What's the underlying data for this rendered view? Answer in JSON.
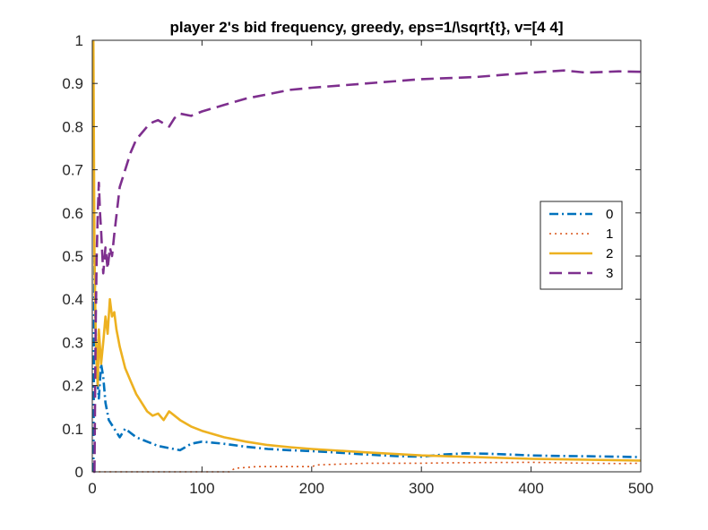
{
  "chart_data": {
    "type": "line",
    "title": "player 2's bid frequency, greedy, eps=1/\\sqrt{t}, v=[4 4]",
    "xlabel": "",
    "ylabel": "",
    "xlim": [
      0,
      500
    ],
    "ylim": [
      0,
      1
    ],
    "xticks": [
      0,
      100,
      200,
      300,
      400,
      500
    ],
    "yticks": [
      0,
      0.1,
      0.2,
      0.3,
      0.4,
      0.5,
      0.6,
      0.7,
      0.8,
      0.9,
      1
    ],
    "xtick_labels": [
      "0",
      "100",
      "200",
      "300",
      "400",
      "500"
    ],
    "ytick_labels": [
      "0",
      "0.1",
      "0.2",
      "0.3",
      "0.4",
      "0.5",
      "0.6",
      "0.7",
      "0.8",
      "0.9",
      "1"
    ],
    "grid": false,
    "legend_position": "right",
    "series": [
      {
        "name": "0",
        "color": "#0072BD",
        "style": "dash-dot",
        "x": [
          1,
          2,
          3,
          4,
          5,
          6,
          8,
          10,
          12,
          15,
          20,
          25,
          30,
          35,
          40,
          50,
          60,
          70,
          80,
          90,
          100,
          120,
          140,
          160,
          180,
          200,
          220,
          250,
          280,
          300,
          320,
          340,
          360,
          380,
          400,
          420,
          450,
          480,
          500
        ],
        "y": [
          0.0,
          0.5,
          0.33,
          0.25,
          0.2,
          0.17,
          0.25,
          0.22,
          0.16,
          0.12,
          0.1,
          0.08,
          0.1,
          0.09,
          0.08,
          0.07,
          0.06,
          0.055,
          0.05,
          0.065,
          0.07,
          0.065,
          0.058,
          0.053,
          0.05,
          0.048,
          0.045,
          0.04,
          0.036,
          0.035,
          0.04,
          0.043,
          0.042,
          0.04,
          0.038,
          0.037,
          0.036,
          0.035,
          0.034
        ]
      },
      {
        "name": "1",
        "color": "#D95319",
        "style": "dotted",
        "x": [
          1,
          5,
          10,
          50,
          100,
          125,
          130,
          150,
          200,
          205,
          250,
          300,
          330,
          400,
          450,
          480,
          500
        ],
        "y": [
          0.0,
          0.0,
          0.0,
          0.0,
          0.0,
          0.0,
          0.008,
          0.012,
          0.012,
          0.016,
          0.02,
          0.02,
          0.021,
          0.022,
          0.02,
          0.019,
          0.02
        ]
      },
      {
        "name": "2",
        "color": "#EDB120",
        "style": "solid",
        "x": [
          1,
          2,
          3,
          4,
          5,
          6,
          8,
          10,
          12,
          14,
          16,
          18,
          20,
          22,
          25,
          30,
          35,
          40,
          50,
          55,
          60,
          65,
          70,
          75,
          80,
          90,
          100,
          120,
          140,
          160,
          180,
          200,
          250,
          300,
          350,
          400,
          450,
          500
        ],
        "y": [
          1.0,
          0.5,
          0.33,
          0.25,
          0.2,
          0.33,
          0.25,
          0.3,
          0.36,
          0.32,
          0.4,
          0.36,
          0.37,
          0.33,
          0.29,
          0.24,
          0.21,
          0.18,
          0.14,
          0.13,
          0.135,
          0.12,
          0.14,
          0.13,
          0.12,
          0.105,
          0.095,
          0.08,
          0.07,
          0.062,
          0.057,
          0.053,
          0.045,
          0.038,
          0.034,
          0.03,
          0.028,
          0.026
        ]
      },
      {
        "name": "3",
        "color": "#7E2F8E",
        "style": "dashed",
        "x": [
          1,
          2,
          3,
          4,
          5,
          6,
          7,
          8,
          10,
          12,
          14,
          16,
          18,
          20,
          25,
          30,
          35,
          40,
          50,
          55,
          60,
          70,
          75,
          80,
          90,
          100,
          120,
          140,
          160,
          180,
          200,
          250,
          300,
          350,
          400,
          430,
          450,
          480,
          500
        ],
        "y": [
          0.0,
          0.0,
          0.33,
          0.5,
          0.6,
          0.67,
          0.6,
          0.56,
          0.46,
          0.52,
          0.47,
          0.52,
          0.5,
          0.55,
          0.66,
          0.7,
          0.74,
          0.77,
          0.8,
          0.81,
          0.815,
          0.8,
          0.82,
          0.83,
          0.825,
          0.835,
          0.85,
          0.865,
          0.875,
          0.885,
          0.89,
          0.9,
          0.91,
          0.915,
          0.925,
          0.93,
          0.925,
          0.928,
          0.927
        ]
      }
    ]
  }
}
